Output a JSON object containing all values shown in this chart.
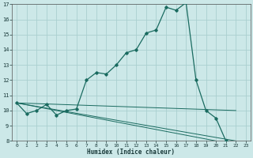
{
  "xlabel": "Humidex (Indice chaleur)",
  "bg_color": "#cce8e8",
  "grid_color": "#aacfcf",
  "line_color": "#1a6b60",
  "xlim": [
    -0.5,
    23.5
  ],
  "ylim": [
    8,
    17
  ],
  "xticks": [
    0,
    1,
    2,
    3,
    4,
    5,
    6,
    7,
    8,
    9,
    10,
    11,
    12,
    13,
    14,
    15,
    16,
    17,
    18,
    19,
    20,
    21,
    22,
    23
  ],
  "yticks": [
    8,
    9,
    10,
    11,
    12,
    13,
    14,
    15,
    16,
    17
  ],
  "series": [
    [
      0,
      10.5
    ],
    [
      1,
      9.8
    ],
    [
      2,
      10.0
    ],
    [
      3,
      10.4
    ],
    [
      4,
      9.7
    ],
    [
      5,
      10.0
    ],
    [
      6,
      10.1
    ],
    [
      7,
      12.0
    ],
    [
      8,
      12.5
    ],
    [
      9,
      12.4
    ],
    [
      10,
      13.0
    ],
    [
      11,
      13.8
    ],
    [
      12,
      14.0
    ],
    [
      13,
      15.1
    ],
    [
      14,
      15.3
    ],
    [
      15,
      16.8
    ],
    [
      16,
      16.6
    ],
    [
      17,
      17.1
    ],
    [
      18,
      12.0
    ],
    [
      19,
      10.0
    ],
    [
      20,
      9.5
    ],
    [
      21,
      8.0
    ],
    [
      22,
      7.75
    ],
    [
      23,
      7.7
    ]
  ],
  "fan_lines": [
    [
      [
        0,
        10.5
      ],
      [
        22,
        10.0
      ]
    ],
    [
      [
        0,
        10.5
      ],
      [
        22,
        8.0
      ]
    ],
    [
      [
        0,
        10.5
      ],
      [
        22,
        7.75
      ]
    ]
  ]
}
